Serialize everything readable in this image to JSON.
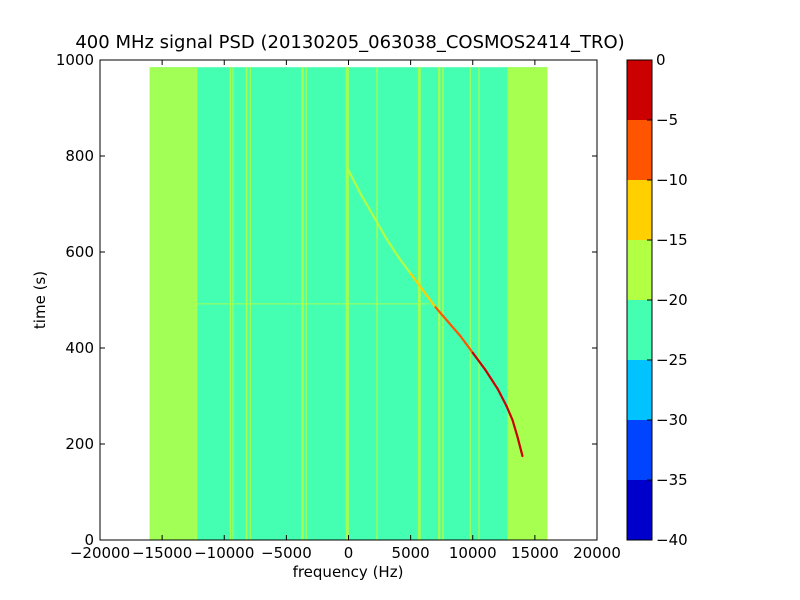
{
  "chart_data": {
    "type": "heatmap",
    "title": "400 MHz signal PSD (20130205_063038_COSMOS2414_TRO)",
    "xlabel": "frequency (Hz)",
    "ylabel": "time (s)",
    "xlim": [
      -20000,
      20000
    ],
    "ylim": [
      0,
      1000
    ],
    "x_ticks": [
      -20000,
      -15000,
      -10000,
      -5000,
      0,
      5000,
      10000,
      15000,
      20000
    ],
    "x_tick_labels": [
      "−20000",
      "−15000",
      "−10000",
      "−5000",
      "0",
      "5000",
      "10000",
      "15000",
      "20000"
    ],
    "y_ticks": [
      0,
      200,
      400,
      600,
      800,
      1000
    ],
    "y_tick_labels": [
      "0",
      "200",
      "400",
      "600",
      "800",
      "1000"
    ],
    "data_extent": {
      "x": [
        -16000,
        16000
      ],
      "y": [
        0,
        985
      ]
    },
    "colorbar": {
      "levels": [
        -40,
        -35,
        -30,
        -25,
        -20,
        -15,
        -10,
        -5,
        0
      ],
      "tick_labels": [
        "−40",
        "−35",
        "−30",
        "−25",
        "−20",
        "−15",
        "−10",
        "−5",
        "0"
      ],
      "colors": [
        "#0000cc",
        "#0044ff",
        "#00c3ff",
        "#44ffb2",
        "#b2ff44",
        "#ffcf00",
        "#ff5500",
        "#cc0000"
      ]
    },
    "background_level_color": "#44ffb2",
    "band_edge_color": "#b2ff44",
    "band_edges": [
      {
        "x0": -16000,
        "x1": -12300
      },
      {
        "x0": 12800,
        "x1": 16000
      }
    ],
    "vertical_lines": [
      {
        "x": -12250,
        "width_hz": 180
      },
      {
        "x": -9500,
        "width_hz": 120
      },
      {
        "x": -9300,
        "width_hz": 90
      },
      {
        "x": -8200,
        "width_hz": 130
      },
      {
        "x": -7900,
        "width_hz": 90
      },
      {
        "x": -3700,
        "width_hz": 200
      },
      {
        "x": -3400,
        "width_hz": 80
      },
      {
        "x": -100,
        "width_hz": 250
      },
      {
        "x": 2300,
        "width_hz": 120
      },
      {
        "x": 5700,
        "width_hz": 220
      },
      {
        "x": 7300,
        "width_hz": 180
      },
      {
        "x": 7600,
        "width_hz": 120
      },
      {
        "x": 9800,
        "width_hz": 80
      },
      {
        "x": 10500,
        "width_hz": 80
      }
    ],
    "horizontal_line": {
      "y": 492,
      "x0": -12300,
      "x1": 6500
    },
    "doppler_curve": {
      "x": [
        0,
        1000,
        2000,
        3000,
        4000,
        5000,
        6000,
        7000,
        8000,
        9000,
        10000,
        11000,
        12000,
        12700,
        13200,
        13600,
        13900,
        14000
      ],
      "y": [
        770,
        720,
        675,
        630,
        590,
        555,
        520,
        485,
        455,
        425,
        390,
        355,
        315,
        280,
        250,
        215,
        185,
        175
      ],
      "colors_by_segment": [
        "#b2ff44",
        "#b2ff44",
        "#b2ff44",
        "#b2ff44",
        "#b2ff44",
        "#ffcf00",
        "#ffcf00",
        "#ff5500",
        "#ff5500",
        "#ff5500",
        "#cc0000",
        "#cc0000",
        "#cc0000",
        "#cc0000",
        "#cc0000",
        "#cc0000",
        "#cc0000"
      ]
    },
    "grid": false,
    "legend": "none"
  }
}
